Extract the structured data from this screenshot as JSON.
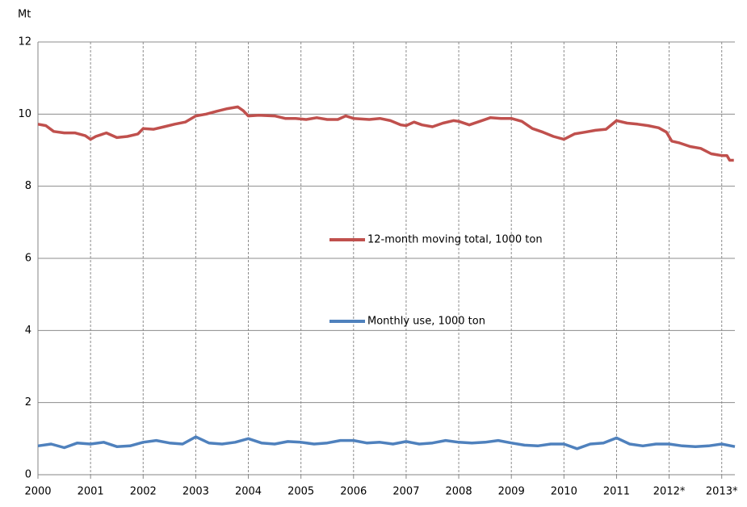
{
  "chart_data": {
    "type": "line",
    "y_label": "Mt",
    "xlim": [
      2000,
      2013.25
    ],
    "ylim": [
      0,
      12
    ],
    "xticks": [
      2000,
      2001,
      2002,
      2003,
      2004,
      2005,
      2006,
      2007,
      2008,
      2009,
      2010,
      2011,
      {
        "value": 2012,
        "label": "2012*"
      },
      {
        "value": 2013,
        "label": "2013*"
      }
    ],
    "yticks": [
      0,
      2,
      4,
      6,
      8,
      10,
      12
    ],
    "grid": true,
    "series": [
      {
        "name": "12-month moving total, 1000 ton",
        "color": "#c0504d",
        "x": [
          2000.0,
          2000.15,
          2000.3,
          2000.5,
          2000.7,
          2000.9,
          2001.0,
          2001.1,
          2001.3,
          2001.5,
          2001.7,
          2001.9,
          2002.0,
          2002.2,
          2002.4,
          2002.6,
          2002.8,
          2003.0,
          2003.2,
          2003.4,
          2003.6,
          2003.8,
          2003.9,
          2004.0,
          2004.2,
          2004.5,
          2004.7,
          2004.9,
          2005.1,
          2005.3,
          2005.5,
          2005.7,
          2005.85,
          2006.0,
          2006.3,
          2006.5,
          2006.7,
          2006.9,
          2007.0,
          2007.15,
          2007.3,
          2007.5,
          2007.7,
          2007.9,
          2008.0,
          2008.2,
          2008.4,
          2008.6,
          2008.8,
          2009.0,
          2009.2,
          2009.4,
          2009.6,
          2009.8,
          2010.0,
          2010.2,
          2010.4,
          2010.6,
          2010.8,
          2011.0,
          2011.2,
          2011.4,
          2011.6,
          2011.8,
          2011.95,
          2012.05,
          2012.2,
          2012.4,
          2012.6,
          2012.8,
          2013.0,
          2013.1,
          2013.15,
          2013.23
        ],
        "values": [
          9.72,
          9.68,
          9.52,
          9.48,
          9.48,
          9.4,
          9.3,
          9.38,
          9.48,
          9.35,
          9.38,
          9.45,
          9.6,
          9.58,
          9.65,
          9.72,
          9.78,
          9.95,
          10.0,
          10.08,
          10.15,
          10.2,
          10.1,
          9.95,
          9.97,
          9.95,
          9.88,
          9.88,
          9.85,
          9.9,
          9.85,
          9.85,
          9.95,
          9.88,
          9.85,
          9.88,
          9.82,
          9.7,
          9.68,
          9.78,
          9.7,
          9.65,
          9.75,
          9.82,
          9.8,
          9.7,
          9.8,
          9.9,
          9.88,
          9.88,
          9.8,
          9.6,
          9.5,
          9.38,
          9.3,
          9.45,
          9.5,
          9.55,
          9.58,
          9.82,
          9.75,
          9.72,
          9.68,
          9.62,
          9.5,
          9.25,
          9.2,
          9.1,
          9.05,
          8.9,
          8.85,
          8.85,
          8.72,
          8.72
        ]
      },
      {
        "name": "Monthly use, 1000 ton",
        "color": "#4f81bd",
        "x": [
          2000.0,
          2000.25,
          2000.5,
          2000.75,
          2001.0,
          2001.25,
          2001.5,
          2001.75,
          2002.0,
          2002.25,
          2002.5,
          2002.75,
          2003.0,
          2003.25,
          2003.5,
          2003.75,
          2004.0,
          2004.25,
          2004.5,
          2004.75,
          2005.0,
          2005.25,
          2005.5,
          2005.75,
          2006.0,
          2006.25,
          2006.5,
          2006.75,
          2007.0,
          2007.25,
          2007.5,
          2007.75,
          2008.0,
          2008.25,
          2008.5,
          2008.75,
          2009.0,
          2009.25,
          2009.5,
          2009.75,
          2010.0,
          2010.25,
          2010.5,
          2010.75,
          2011.0,
          2011.25,
          2011.5,
          2011.75,
          2012.0,
          2012.25,
          2012.5,
          2012.75,
          2013.0,
          2013.25
        ],
        "values": [
          0.8,
          0.85,
          0.75,
          0.88,
          0.85,
          0.9,
          0.78,
          0.8,
          0.9,
          0.95,
          0.88,
          0.85,
          1.05,
          0.88,
          0.85,
          0.9,
          1.0,
          0.88,
          0.85,
          0.92,
          0.9,
          0.85,
          0.88,
          0.95,
          0.95,
          0.88,
          0.9,
          0.85,
          0.92,
          0.85,
          0.88,
          0.95,
          0.9,
          0.88,
          0.9,
          0.95,
          0.88,
          0.82,
          0.8,
          0.85,
          0.85,
          0.72,
          0.85,
          0.88,
          1.02,
          0.85,
          0.8,
          0.85,
          0.85,
          0.8,
          0.78,
          0.8,
          0.85,
          0.78
        ]
      }
    ]
  }
}
